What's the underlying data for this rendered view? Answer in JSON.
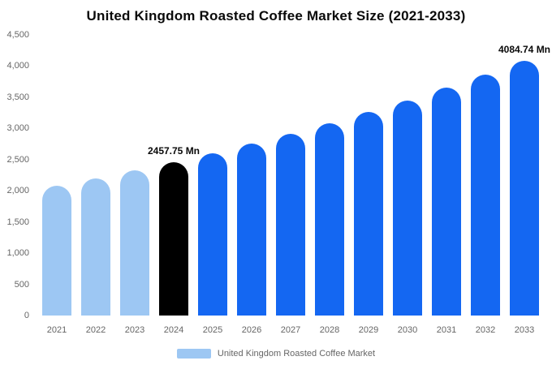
{
  "chart": {
    "title": "United Kingdom Roasted Coffee Market Size (2021-2033)"
  },
  "chart_data": {
    "type": "bar",
    "title": "United Kingdom Roasted Coffee Market Size (2021-2033)",
    "xlabel": "",
    "ylabel": "",
    "unit": "Mn",
    "ylim": [
      0,
      4500
    ],
    "ytick_step": 500,
    "yticks": [
      "0",
      "500",
      "1,000",
      "1,500",
      "2,000",
      "2,500",
      "3,000",
      "3,500",
      "4,000",
      "4,500"
    ],
    "grid": false,
    "legend_position": "bottom",
    "categories": [
      "2021",
      "2022",
      "2023",
      "2024",
      "2025",
      "2026",
      "2027",
      "2028",
      "2029",
      "2030",
      "2031",
      "2032",
      "2033"
    ],
    "values": [
      2076,
      2197,
      2323,
      2457.75,
      2601,
      2752,
      2912,
      3081,
      3260,
      3449,
      3649,
      3861,
      4084.74
    ],
    "labels": [
      null,
      null,
      null,
      "2457.75 Mn",
      null,
      null,
      null,
      null,
      null,
      null,
      null,
      null,
      "4084.74 Mn"
    ],
    "point_colors": [
      "#9DC7F3",
      "#9DC7F3",
      "#9DC7F3",
      "#000000",
      "#1467F2",
      "#1467F2",
      "#1467F2",
      "#1467F2",
      "#1467F2",
      "#1467F2",
      "#1467F2",
      "#1467F2",
      "#1467F2"
    ],
    "colors": {
      "historical": "#9DC7F3",
      "base_year": "#000000",
      "forecast": "#1467F2"
    }
  },
  "legend": {
    "label": "United Kingdom Roasted Coffee Market",
    "swatch_color": "#9DC7F3"
  }
}
